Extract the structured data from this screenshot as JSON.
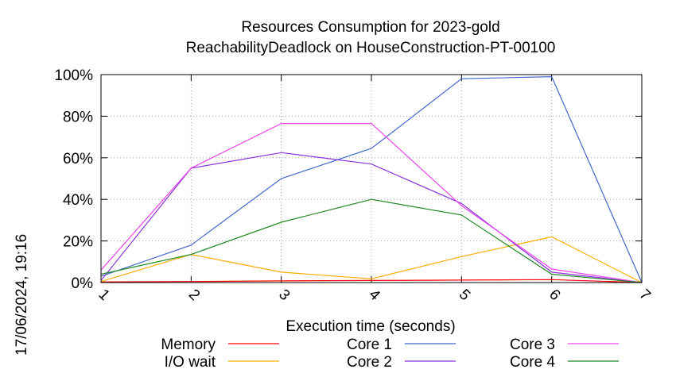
{
  "chart_data": {
    "type": "line",
    "title": "Resources Consumption for 2023-gold",
    "subtitle": "ReachabilityDeadlock on HouseConstruction-PT-00100",
    "xlabel": "Execution time (seconds)",
    "side_label": "17/06/2024, 19:16",
    "x": [
      1,
      2,
      3,
      4,
      5,
      6,
      7
    ],
    "xlim": [
      1,
      7
    ],
    "ylim": [
      0,
      100
    ],
    "y_ticks": [
      "0%",
      "20%",
      "40%",
      "60%",
      "80%",
      "100%"
    ],
    "x_ticks": [
      "1",
      "2",
      "3",
      "4",
      "5",
      "6",
      "7"
    ],
    "grid": true,
    "series": [
      {
        "name": "Memory",
        "color": "#ff0000",
        "values": [
          0.3,
          0.5,
          0.8,
          1.0,
          1.2,
          1.4,
          0
        ]
      },
      {
        "name": "I/O wait",
        "color": "#ffaa00",
        "values": [
          0.5,
          13.5,
          5,
          1.8,
          12.5,
          22,
          0
        ]
      },
      {
        "name": "Core 1",
        "color": "#4466cc",
        "values": [
          3,
          18,
          50,
          64.5,
          98,
          99,
          0
        ]
      },
      {
        "name": "Core 2",
        "color": "#8833dd",
        "values": [
          1,
          55,
          62.5,
          57,
          38,
          5,
          0
        ]
      },
      {
        "name": "Core 3",
        "color": "#ee44ee",
        "values": [
          6,
          55,
          76.5,
          76.5,
          37,
          6.5,
          0
        ]
      },
      {
        "name": "Core 4",
        "color": "#228822",
        "values": [
          4,
          13.5,
          29,
          40,
          32.5,
          4,
          0
        ]
      }
    ]
  }
}
